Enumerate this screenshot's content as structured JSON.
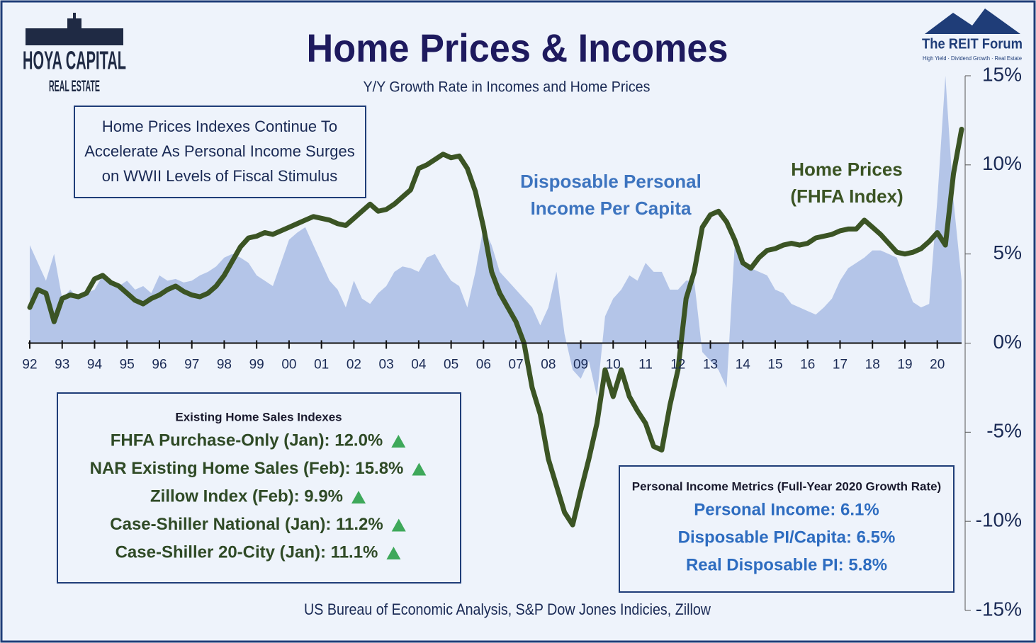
{
  "header": {
    "logo_left": [
      "HOYA CAPITAL",
      "REAL ESTATE"
    ],
    "logo_right": [
      "The REIT Forum",
      "High Yield · Dividend Growth · Real Estate"
    ]
  },
  "chart_data": {
    "type": "line-area",
    "title": "Home Prices & Incomes",
    "subtitle": "Y/Y Growth Rate in Incomes and Home Prices",
    "source": "US Bureau of Economic Analysis, S&P Dow Jones Indicies, Zillow",
    "annotation": [
      "Home Prices Indexes Continue To",
      "Accelerate As Personal Income Surges",
      "on WWII Levels of Fiscal Stimulus"
    ],
    "x": [
      1992,
      1992.25,
      1992.5,
      1992.75,
      1993,
      1993.25,
      1993.5,
      1993.75,
      1994,
      1994.25,
      1994.5,
      1994.75,
      1995,
      1995.25,
      1995.5,
      1995.75,
      1996,
      1996.25,
      1996.5,
      1996.75,
      1997,
      1997.25,
      1997.5,
      1997.75,
      1998,
      1998.25,
      1998.5,
      1998.75,
      1999,
      1999.25,
      1999.5,
      1999.75,
      2000,
      2000.25,
      2000.5,
      2000.75,
      2001,
      2001.25,
      2001.5,
      2001.75,
      2002,
      2002.25,
      2002.5,
      2002.75,
      2003,
      2003.25,
      2003.5,
      2003.75,
      2004,
      2004.25,
      2004.5,
      2004.75,
      2005,
      2005.25,
      2005.5,
      2005.75,
      2006,
      2006.25,
      2006.5,
      2006.75,
      2007,
      2007.25,
      2007.5,
      2007.75,
      2008,
      2008.25,
      2008.5,
      2008.75,
      2009,
      2009.25,
      2009.5,
      2009.75,
      2010,
      2010.25,
      2010.5,
      2010.75,
      2011,
      2011.25,
      2011.5,
      2011.75,
      2012,
      2012.25,
      2012.5,
      2012.75,
      2013,
      2013.25,
      2013.5,
      2013.75,
      2014,
      2014.25,
      2014.5,
      2014.75,
      2015,
      2015.25,
      2015.5,
      2015.75,
      2016,
      2016.25,
      2016.5,
      2016.75,
      2017,
      2017.25,
      2017.5,
      2017.75,
      2018,
      2018.25,
      2018.5,
      2018.75,
      2019,
      2019.25,
      2019.5,
      2019.75,
      2020,
      2020.25,
      2020.5,
      2020.75
    ],
    "series": [
      {
        "name": [
          "Disposable Personal",
          "Income Per Capita"
        ],
        "kind": "area",
        "color": "#b4c5e8",
        "label_color": "#3d74bf",
        "values": [
          5.5,
          4.5,
          3.5,
          5.0,
          2.5,
          3.0,
          2.5,
          2.8,
          3.0,
          3.8,
          3.5,
          3.2,
          3.5,
          3.0,
          3.2,
          2.8,
          3.8,
          3.5,
          3.6,
          3.4,
          3.5,
          3.8,
          4.0,
          4.3,
          4.8,
          5.0,
          4.8,
          4.5,
          3.8,
          3.5,
          3.2,
          4.5,
          5.8,
          6.2,
          6.5,
          5.5,
          4.5,
          3.5,
          3.0,
          2.0,
          3.5,
          2.5,
          2.2,
          2.8,
          3.2,
          4.0,
          4.3,
          4.2,
          4.0,
          4.8,
          5.0,
          4.2,
          3.5,
          3.2,
          2.0,
          4.0,
          6.5,
          5.5,
          4.0,
          3.5,
          3.0,
          2.5,
          2.0,
          1.0,
          2.0,
          4.0,
          0.5,
          -1.5,
          -2.0,
          -1.0,
          -3.0,
          1.5,
          2.5,
          3.0,
          3.8,
          3.5,
          4.5,
          4.0,
          4.0,
          3.0,
          3.0,
          3.5,
          3.5,
          -0.5,
          -1.0,
          -1.5,
          -2.5,
          5.5,
          4.5,
          4.2,
          4.0,
          3.8,
          3.0,
          2.8,
          2.2,
          2.0,
          1.8,
          1.6,
          2.0,
          2.5,
          3.5,
          4.2,
          4.5,
          4.8,
          5.2,
          5.2,
          5.0,
          4.8,
          3.5,
          2.3,
          2.0,
          2.2,
          8.0,
          15.0,
          8.0,
          3.5
        ]
      },
      {
        "name": [
          "Home Prices",
          "(FHFA Index)"
        ],
        "kind": "line",
        "color": "#3b5424",
        "label_color": "#3b5424",
        "values": [
          2.0,
          3.0,
          2.8,
          1.2,
          2.5,
          2.7,
          2.6,
          2.8,
          3.6,
          3.8,
          3.4,
          3.2,
          2.8,
          2.4,
          2.2,
          2.5,
          2.7,
          3.0,
          3.2,
          2.9,
          2.7,
          2.6,
          2.8,
          3.2,
          3.8,
          4.6,
          5.4,
          5.9,
          6.0,
          6.2,
          6.1,
          6.3,
          6.5,
          6.7,
          6.9,
          7.1,
          7.0,
          6.9,
          6.7,
          6.6,
          7.0,
          7.4,
          7.8,
          7.4,
          7.5,
          7.8,
          8.2,
          8.6,
          9.8,
          10.0,
          10.3,
          10.6,
          10.4,
          10.5,
          9.8,
          8.5,
          6.5,
          4.0,
          2.8,
          2.0,
          1.2,
          0.0,
          -2.5,
          -4.0,
          -6.5,
          -8.0,
          -9.5,
          -10.2,
          -8.3,
          -6.5,
          -4.5,
          -1.5,
          -3.0,
          -1.5,
          -3.0,
          -3.8,
          -4.5,
          -5.8,
          -6.0,
          -3.5,
          -1.5,
          2.5,
          4.0,
          6.5,
          7.2,
          7.4,
          6.8,
          5.8,
          4.5,
          4.2,
          4.8,
          5.2,
          5.3,
          5.5,
          5.6,
          5.5,
          5.6,
          5.9,
          6.0,
          6.1,
          6.3,
          6.4,
          6.4,
          6.9,
          6.5,
          6.1,
          5.6,
          5.1,
          5.0,
          5.1,
          5.3,
          5.7,
          6.2,
          5.5,
          9.5,
          12.0
        ]
      }
    ],
    "xlim": [
      1992,
      2020.75
    ],
    "xticks": [
      {
        "value": 1992,
        "label": "92"
      },
      {
        "value": 1993,
        "label": "93"
      },
      {
        "value": 1994,
        "label": "94"
      },
      {
        "value": 1995,
        "label": "95"
      },
      {
        "value": 1996,
        "label": "96"
      },
      {
        "value": 1997,
        "label": "97"
      },
      {
        "value": 1998,
        "label": "98"
      },
      {
        "value": 1999,
        "label": "99"
      },
      {
        "value": 2000,
        "label": "00"
      },
      {
        "value": 2001,
        "label": "01"
      },
      {
        "value": 2002,
        "label": "02"
      },
      {
        "value": 2003,
        "label": "03"
      },
      {
        "value": 2004,
        "label": "04"
      },
      {
        "value": 2005,
        "label": "05"
      },
      {
        "value": 2006,
        "label": "06"
      },
      {
        "value": 2007,
        "label": "07"
      },
      {
        "value": 2008,
        "label": "08"
      },
      {
        "value": 2009,
        "label": "09"
      },
      {
        "value": 2010,
        "label": "10"
      },
      {
        "value": 2011,
        "label": "11"
      },
      {
        "value": 2012,
        "label": "12"
      },
      {
        "value": 2013,
        "label": "13"
      },
      {
        "value": 2014,
        "label": "14"
      },
      {
        "value": 2015,
        "label": "15"
      },
      {
        "value": 2016,
        "label": "16"
      },
      {
        "value": 2017,
        "label": "17"
      },
      {
        "value": 2018,
        "label": "18"
      },
      {
        "value": 2019,
        "label": "19"
      },
      {
        "value": 2020,
        "label": "20"
      }
    ],
    "ylim": [
      -15,
      15
    ],
    "yticks": [
      {
        "value": 15,
        "label": "15%"
      },
      {
        "value": 10,
        "label": "10%"
      },
      {
        "value": 5,
        "label": "5%"
      },
      {
        "value": 0,
        "label": "0%"
      },
      {
        "value": -5,
        "label": "-5%"
      },
      {
        "value": -10,
        "label": "-10%"
      },
      {
        "value": -15,
        "label": "-15%"
      }
    ],
    "y_axis_side": "right",
    "boxes": [
      {
        "heading": "Existing Home Sales Indexes",
        "color": "#2f4a26",
        "marker": "up",
        "items": [
          "FHFA Purchase-Only (Jan): 12.0%",
          "NAR Existing Home Sales (Feb): 15.8%",
          "Zillow Index (Feb): 9.9%",
          "Case-Shiller National (Jan): 11.2%",
          "Case-Shiller 20-City (Jan): 11.1%"
        ]
      },
      {
        "heading": "Personal Income Metrics (Full-Year 2020 Growth Rate)",
        "color": "#2d6cc0",
        "items": [
          "Personal Income: 6.1%",
          "Disposable PI/Capita: 6.5%",
          "Real Disposable PI: 5.8%"
        ]
      }
    ]
  }
}
